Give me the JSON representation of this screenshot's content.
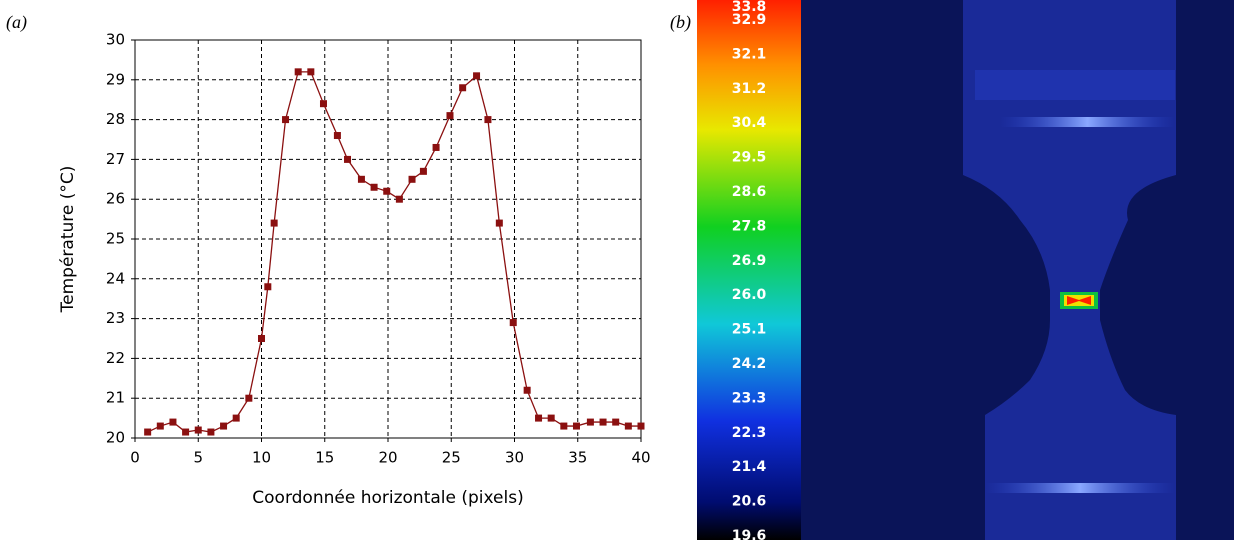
{
  "panel_labels": [
    "(a)",
    "(b)"
  ],
  "chart_data": {
    "type": "line",
    "x_label": "Coordonnée horizontale (pixels)",
    "y_label": "Température (°C)",
    "color": "#8b1010",
    "grid": true,
    "xlim": [
      0,
      40
    ],
    "ylim": [
      20,
      30
    ],
    "xticks": [
      0,
      5,
      10,
      15,
      20,
      25,
      30,
      35,
      40
    ],
    "yticks": [
      20,
      21,
      22,
      23,
      24,
      25,
      26,
      27,
      28,
      29,
      30
    ],
    "x": [
      1,
      2,
      3,
      4,
      5,
      6,
      7,
      8,
      9,
      10,
      10.5,
      11,
      11.9,
      12.9,
      13.9,
      14.9,
      16,
      16.8,
      17.9,
      18.9,
      19.9,
      20.9,
      21.9,
      22.8,
      23.8,
      24.9,
      25.9,
      27,
      27.9,
      28.8,
      29.9,
      31,
      31.9,
      32.9,
      33.9,
      34.9,
      36,
      37,
      38,
      39,
      40
    ],
    "values": [
      20.15,
      20.3,
      20.4,
      20.15,
      20.2,
      20.15,
      20.3,
      20.5,
      21.0,
      22.5,
      23.8,
      25.4,
      28.0,
      29.2,
      29.2,
      28.4,
      27.6,
      27.0,
      26.5,
      26.3,
      26.2,
      26.0,
      26.5,
      26.7,
      27.3,
      28.1,
      28.8,
      29.1,
      28.0,
      25.4,
      22.9,
      21.2,
      20.5,
      20.5,
      20.3,
      20.3,
      20.4,
      20.4,
      20.4,
      20.3,
      20.3
    ]
  },
  "colorbar": {
    "labels": [
      "33.8",
      "32.9",
      "32.1",
      "31.2",
      "30.4",
      "29.5",
      "28.6",
      "27.8",
      "26.9",
      "26.0",
      "25.1",
      "24.2",
      "23.3",
      "22.3",
      "21.4",
      "20.6",
      "19.6"
    ]
  }
}
